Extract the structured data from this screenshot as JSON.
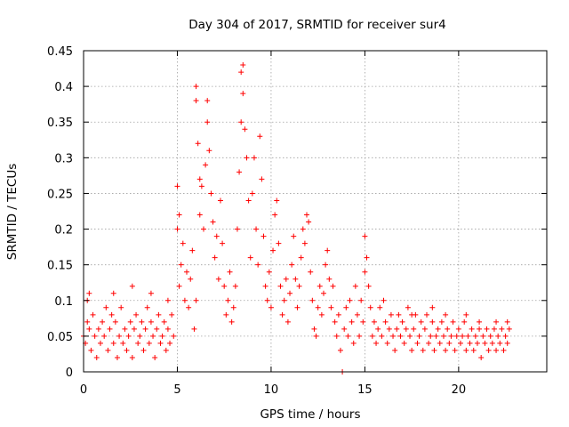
{
  "chart_data": {
    "type": "scatter",
    "title": "Day 304 of 2017, SRMTID for receiver sur4",
    "xlabel": "GPS time / hours",
    "ylabel": "SRMTID / TECUs",
    "xlim": [
      0,
      24.7
    ],
    "ylim": [
      0,
      0.45
    ],
    "x_ticks": [
      0,
      5,
      10,
      15,
      20
    ],
    "x_tick_labels": [
      "0",
      "5",
      "10",
      "15",
      "20"
    ],
    "y_ticks": [
      0,
      0.05,
      0.1,
      0.15,
      0.2,
      0.25,
      0.3,
      0.35,
      0.4,
      0.45
    ],
    "y_tick_labels": [
      "0",
      "0.05",
      "0.1",
      "0.15",
      "0.2",
      "0.25",
      "0.3",
      "0.35",
      "0.4",
      "0.45"
    ],
    "grid": true,
    "marker": "plus",
    "series": [
      {
        "name": "SRMTID",
        "color": "#ff0000",
        "points": [
          [
            0.0,
            0.05
          ],
          [
            0.1,
            0.04
          ],
          [
            0.2,
            0.07
          ],
          [
            0.2,
            0.1
          ],
          [
            0.3,
            0.06
          ],
          [
            0.4,
            0.03
          ],
          [
            0.5,
            0.08
          ],
          [
            0.6,
            0.05
          ],
          [
            0.7,
            0.02
          ],
          [
            0.8,
            0.06
          ],
          [
            0.9,
            0.04
          ],
          [
            1.0,
            0.07
          ],
          [
            1.1,
            0.05
          ],
          [
            1.2,
            0.09
          ],
          [
            1.3,
            0.03
          ],
          [
            1.4,
            0.06
          ],
          [
            1.5,
            0.08
          ],
          [
            1.6,
            0.04
          ],
          [
            1.7,
            0.07
          ],
          [
            1.8,
            0.02
          ],
          [
            1.9,
            0.05
          ],
          [
            2.0,
            0.09
          ],
          [
            2.1,
            0.04
          ],
          [
            2.2,
            0.06
          ],
          [
            2.3,
            0.03
          ],
          [
            2.4,
            0.05
          ],
          [
            2.5,
            0.07
          ],
          [
            2.6,
            0.02
          ],
          [
            2.7,
            0.06
          ],
          [
            2.8,
            0.08
          ],
          [
            2.9,
            0.04
          ],
          [
            3.0,
            0.05
          ],
          [
            3.1,
            0.07
          ],
          [
            3.2,
            0.03
          ],
          [
            3.3,
            0.06
          ],
          [
            3.4,
            0.09
          ],
          [
            3.5,
            0.04
          ],
          [
            3.6,
            0.07
          ],
          [
            3.7,
            0.05
          ],
          [
            3.8,
            0.02
          ],
          [
            3.9,
            0.06
          ],
          [
            4.0,
            0.08
          ],
          [
            4.1,
            0.04
          ],
          [
            4.2,
            0.05
          ],
          [
            4.3,
            0.07
          ],
          [
            4.4,
            0.03
          ],
          [
            4.5,
            0.06
          ],
          [
            4.6,
            0.04
          ],
          [
            4.7,
            0.08
          ],
          [
            4.8,
            0.05
          ],
          [
            0.3,
            0.11
          ],
          [
            1.6,
            0.11
          ],
          [
            2.6,
            0.12
          ],
          [
            3.6,
            0.11
          ],
          [
            4.5,
            0.1
          ],
          [
            5.0,
            0.2
          ],
          [
            5.0,
            0.26
          ],
          [
            5.1,
            0.22
          ],
          [
            5.1,
            0.12
          ],
          [
            5.2,
            0.15
          ],
          [
            5.3,
            0.18
          ],
          [
            5.4,
            0.1
          ],
          [
            5.5,
            0.14
          ],
          [
            5.6,
            0.09
          ],
          [
            5.7,
            0.13
          ],
          [
            5.8,
            0.17
          ],
          [
            5.9,
            0.06
          ],
          [
            6.0,
            0.1
          ],
          [
            6.0,
            0.38
          ],
          [
            6.0,
            0.4
          ],
          [
            6.1,
            0.32
          ],
          [
            6.2,
            0.27
          ],
          [
            6.2,
            0.22
          ],
          [
            6.3,
            0.26
          ],
          [
            6.4,
            0.2
          ],
          [
            6.5,
            0.29
          ],
          [
            6.6,
            0.35
          ],
          [
            6.6,
            0.38
          ],
          [
            6.7,
            0.31
          ],
          [
            6.8,
            0.25
          ],
          [
            6.9,
            0.21
          ],
          [
            7.0,
            0.16
          ],
          [
            7.1,
            0.19
          ],
          [
            7.2,
            0.13
          ],
          [
            7.3,
            0.24
          ],
          [
            7.4,
            0.18
          ],
          [
            7.5,
            0.12
          ],
          [
            7.6,
            0.08
          ],
          [
            7.7,
            0.1
          ],
          [
            7.8,
            0.14
          ],
          [
            7.9,
            0.07
          ],
          [
            8.0,
            0.09
          ],
          [
            8.1,
            0.12
          ],
          [
            8.2,
            0.2
          ],
          [
            8.3,
            0.28
          ],
          [
            8.4,
            0.35
          ],
          [
            8.4,
            0.42
          ],
          [
            8.5,
            0.43
          ],
          [
            8.5,
            0.39
          ],
          [
            8.6,
            0.34
          ],
          [
            8.7,
            0.3
          ],
          [
            8.8,
            0.24
          ],
          [
            8.9,
            0.16
          ],
          [
            9.0,
            0.25
          ],
          [
            9.1,
            0.3
          ],
          [
            9.2,
            0.2
          ],
          [
            9.3,
            0.15
          ],
          [
            9.4,
            0.33
          ],
          [
            9.5,
            0.27
          ],
          [
            9.6,
            0.19
          ],
          [
            9.7,
            0.12
          ],
          [
            9.8,
            0.1
          ],
          [
            9.9,
            0.14
          ],
          [
            10.0,
            0.09
          ],
          [
            10.1,
            0.17
          ],
          [
            10.2,
            0.22
          ],
          [
            10.3,
            0.24
          ],
          [
            10.4,
            0.18
          ],
          [
            10.5,
            0.12
          ],
          [
            10.6,
            0.08
          ],
          [
            10.7,
            0.1
          ],
          [
            10.8,
            0.13
          ],
          [
            10.9,
            0.07
          ],
          [
            11.0,
            0.11
          ],
          [
            11.1,
            0.15
          ],
          [
            11.2,
            0.19
          ],
          [
            11.3,
            0.13
          ],
          [
            11.4,
            0.09
          ],
          [
            11.5,
            0.12
          ],
          [
            11.6,
            0.16
          ],
          [
            11.7,
            0.2
          ],
          [
            11.8,
            0.18
          ],
          [
            11.9,
            0.22
          ],
          [
            12.0,
            0.21
          ],
          [
            12.1,
            0.14
          ],
          [
            12.2,
            0.1
          ],
          [
            12.3,
            0.06
          ],
          [
            12.4,
            0.05
          ],
          [
            12.5,
            0.09
          ],
          [
            12.6,
            0.12
          ],
          [
            12.7,
            0.08
          ],
          [
            12.8,
            0.11
          ],
          [
            12.9,
            0.15
          ],
          [
            13.0,
            0.17
          ],
          [
            13.1,
            0.13
          ],
          [
            13.2,
            0.09
          ],
          [
            13.3,
            0.12
          ],
          [
            13.4,
            0.07
          ],
          [
            13.5,
            0.05
          ],
          [
            13.6,
            0.08
          ],
          [
            13.7,
            0.03
          ],
          [
            13.8,
            0.0
          ],
          [
            13.9,
            0.06
          ],
          [
            14.0,
            0.09
          ],
          [
            14.1,
            0.05
          ],
          [
            14.2,
            0.1
          ],
          [
            14.3,
            0.07
          ],
          [
            14.4,
            0.04
          ],
          [
            14.5,
            0.12
          ],
          [
            14.6,
            0.08
          ],
          [
            14.7,
            0.05
          ],
          [
            14.8,
            0.1
          ],
          [
            14.9,
            0.07
          ],
          [
            15.0,
            0.14
          ],
          [
            15.0,
            0.19
          ],
          [
            15.1,
            0.16
          ],
          [
            15.2,
            0.12
          ],
          [
            15.3,
            0.09
          ],
          [
            15.4,
            0.05
          ],
          [
            15.5,
            0.07
          ],
          [
            15.6,
            0.04
          ],
          [
            15.7,
            0.06
          ],
          [
            15.8,
            0.09
          ],
          [
            15.9,
            0.05
          ],
          [
            16.0,
            0.1
          ],
          [
            16.1,
            0.07
          ],
          [
            16.2,
            0.04
          ],
          [
            16.3,
            0.06
          ],
          [
            16.4,
            0.08
          ],
          [
            16.5,
            0.05
          ],
          [
            16.6,
            0.03
          ],
          [
            16.7,
            0.06
          ],
          [
            16.8,
            0.08
          ],
          [
            16.9,
            0.05
          ],
          [
            17.0,
            0.07
          ],
          [
            17.1,
            0.04
          ],
          [
            17.2,
            0.06
          ],
          [
            17.3,
            0.09
          ],
          [
            17.4,
            0.05
          ],
          [
            17.5,
            0.03
          ],
          [
            17.6,
            0.06
          ],
          [
            17.7,
            0.08
          ],
          [
            17.8,
            0.04
          ],
          [
            17.9,
            0.05
          ],
          [
            18.0,
            0.07
          ],
          [
            18.1,
            0.03
          ],
          [
            18.2,
            0.06
          ],
          [
            18.3,
            0.08
          ],
          [
            18.4,
            0.04
          ],
          [
            18.5,
            0.05
          ],
          [
            18.6,
            0.07
          ],
          [
            18.7,
            0.03
          ],
          [
            18.8,
            0.05
          ],
          [
            18.9,
            0.06
          ],
          [
            19.0,
            0.04
          ],
          [
            19.1,
            0.07
          ],
          [
            19.2,
            0.05
          ],
          [
            19.3,
            0.03
          ],
          [
            19.4,
            0.06
          ],
          [
            19.5,
            0.04
          ],
          [
            19.6,
            0.05
          ],
          [
            19.7,
            0.07
          ],
          [
            19.8,
            0.03
          ],
          [
            19.9,
            0.05
          ],
          [
            20.0,
            0.06
          ],
          [
            20.1,
            0.04
          ],
          [
            20.2,
            0.05
          ],
          [
            20.3,
            0.07
          ],
          [
            20.4,
            0.03
          ],
          [
            20.5,
            0.05
          ],
          [
            20.6,
            0.04
          ],
          [
            20.7,
            0.06
          ],
          [
            20.8,
            0.03
          ],
          [
            20.9,
            0.05
          ],
          [
            21.0,
            0.04
          ],
          [
            21.1,
            0.06
          ],
          [
            21.2,
            0.02
          ],
          [
            21.3,
            0.05
          ],
          [
            21.4,
            0.04
          ],
          [
            21.5,
            0.06
          ],
          [
            21.6,
            0.03
          ],
          [
            21.7,
            0.05
          ],
          [
            21.8,
            0.04
          ],
          [
            21.9,
            0.06
          ],
          [
            22.0,
            0.03
          ],
          [
            22.1,
            0.05
          ],
          [
            22.2,
            0.04
          ],
          [
            22.3,
            0.06
          ],
          [
            22.4,
            0.03
          ],
          [
            22.5,
            0.05
          ],
          [
            22.6,
            0.04
          ],
          [
            22.7,
            0.06
          ],
          [
            17.5,
            0.08
          ],
          [
            18.6,
            0.09
          ],
          [
            19.3,
            0.08
          ],
          [
            20.4,
            0.08
          ],
          [
            21.1,
            0.07
          ],
          [
            22.0,
            0.07
          ],
          [
            22.6,
            0.07
          ]
        ]
      }
    ]
  }
}
